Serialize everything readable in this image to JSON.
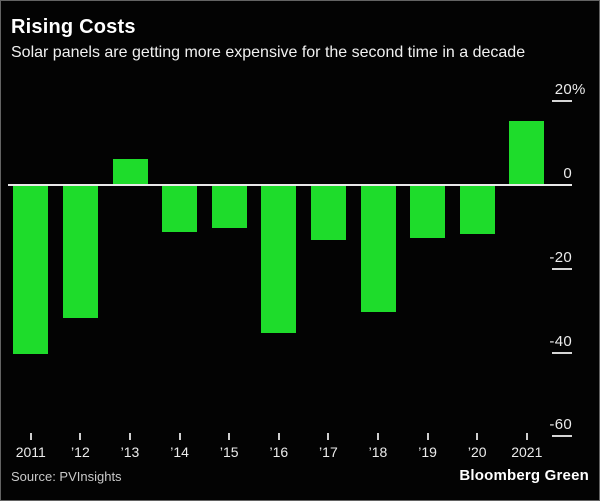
{
  "header": {
    "title": "Rising Costs",
    "subtitle": "Solar panels are getting more expensive for the second time in a decade"
  },
  "footer": {
    "source": "Source: PVInsights",
    "brand": "Bloomberg Green"
  },
  "colors": {
    "background": "#030303",
    "bar": "#1edc2b",
    "axis": "#e9e9e9",
    "tick_dash": "#d6d6d6",
    "text": "#ffffff"
  },
  "chart_data": {
    "type": "bar",
    "title": "Rising Costs",
    "subtitle": "Solar panels are getting more expensive for the second time in a decade",
    "categories": [
      "2011",
      "’12",
      "’13",
      "’14",
      "’15",
      "’16",
      "’17",
      "’18",
      "’19",
      "’20",
      "2021"
    ],
    "values": [
      -40,
      -31.5,
      6,
      -11,
      -10,
      -35,
      -13,
      -30,
      -12.5,
      -11.5,
      15
    ],
    "unit": "%",
    "xlabel": "",
    "ylabel": "",
    "y_ticks": [
      20,
      0,
      -20,
      -40,
      -60
    ],
    "y_tick_labels": [
      "20%",
      "0",
      "-20",
      "-40",
      "-60"
    ],
    "ylim": [
      -65,
      25
    ],
    "axis_side": "right",
    "grid": false,
    "legend_position": "none",
    "bar_color": "#1edc2b"
  }
}
